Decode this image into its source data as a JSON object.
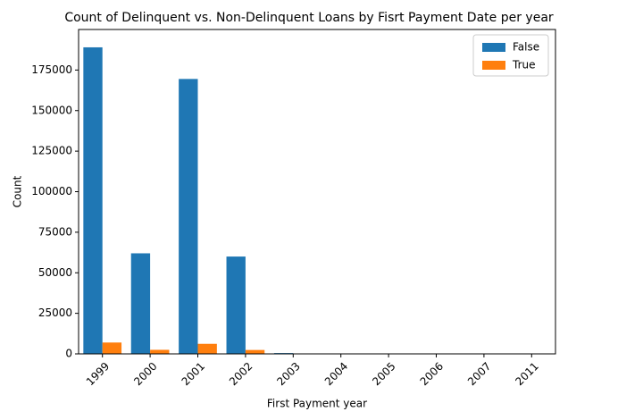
{
  "chart_data": {
    "type": "bar",
    "title": "Count of Delinquent vs. Non-Delinquent Loans by Fisrt Payment Date per year",
    "xlabel": "First Payment year",
    "ylabel": "Count",
    "categories": [
      "1999",
      "2000",
      "2001",
      "2002",
      "2003",
      "2004",
      "2005",
      "2006",
      "2007",
      "2011"
    ],
    "series": [
      {
        "name": "False",
        "color": "#1f77b4",
        "values": [
          189000,
          62000,
          169500,
          60000,
          500,
          80,
          40,
          20,
          10,
          5
        ]
      },
      {
        "name": "True",
        "color": "#ff7f0e",
        "values": [
          7000,
          2500,
          6200,
          2400,
          50,
          10,
          5,
          2,
          1,
          0
        ]
      }
    ],
    "ylim": [
      0,
      200000
    ],
    "yticks": [
      0,
      25000,
      50000,
      75000,
      100000,
      125000,
      150000,
      175000
    ],
    "ytick_labels": [
      "0",
      "25000",
      "50000",
      "75000",
      "100000",
      "125000",
      "150000",
      "175000"
    ],
    "grid": false,
    "legend_position": "top-right"
  }
}
